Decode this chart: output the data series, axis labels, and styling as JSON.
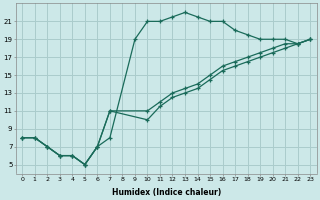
{
  "xlabel": "Humidex (Indice chaleur)",
  "background_color": "#cce8e8",
  "grid_color": "#aacccc",
  "line_color": "#1a6b5a",
  "lines": [
    {
      "x": [
        0,
        1,
        2,
        3,
        4,
        5,
        6,
        7,
        9,
        10,
        11,
        12,
        13,
        14,
        15,
        16,
        17,
        18,
        19,
        20,
        21,
        22,
        23
      ],
      "y": [
        8,
        8,
        7,
        6,
        6,
        5,
        7,
        8,
        19,
        21,
        21,
        21.5,
        22,
        21.5,
        21,
        21,
        20,
        19.5,
        19,
        19,
        19,
        18.5,
        19
      ]
    },
    {
      "x": [
        0,
        1,
        2,
        3,
        4,
        5,
        6,
        7,
        10,
        11,
        12,
        13,
        14,
        15,
        16,
        17,
        18,
        19,
        20,
        21,
        22,
        23
      ],
      "y": [
        8,
        8,
        7,
        6,
        6,
        5,
        7,
        11,
        11,
        12,
        13,
        13.5,
        14,
        15,
        16,
        16.5,
        17,
        17.5,
        18,
        18.5,
        18.5,
        19
      ]
    },
    {
      "x": [
        0,
        1,
        2,
        3,
        4,
        5,
        6,
        7,
        10,
        11,
        12,
        13,
        14,
        15,
        16,
        17,
        18,
        19,
        20,
        21,
        22,
        23
      ],
      "y": [
        8,
        8,
        7,
        6,
        6,
        5,
        7,
        11,
        10,
        11.5,
        12.5,
        13,
        13.5,
        14.5,
        15.5,
        16,
        16.5,
        17,
        17.5,
        18,
        18.5,
        19
      ]
    }
  ],
  "xlim": [
    -0.5,
    23.5
  ],
  "ylim": [
    4.0,
    23.0
  ],
  "yticks": [
    5,
    7,
    9,
    11,
    13,
    15,
    17,
    19,
    21
  ],
  "xtick_labels": [
    "0",
    "1",
    "2",
    "3",
    "4",
    "5",
    "6",
    "7",
    "8",
    "9",
    "10",
    "11",
    "12",
    "13",
    "14",
    "15",
    "16",
    "17",
    "18",
    "19",
    "20",
    "21",
    "22",
    "23"
  ]
}
